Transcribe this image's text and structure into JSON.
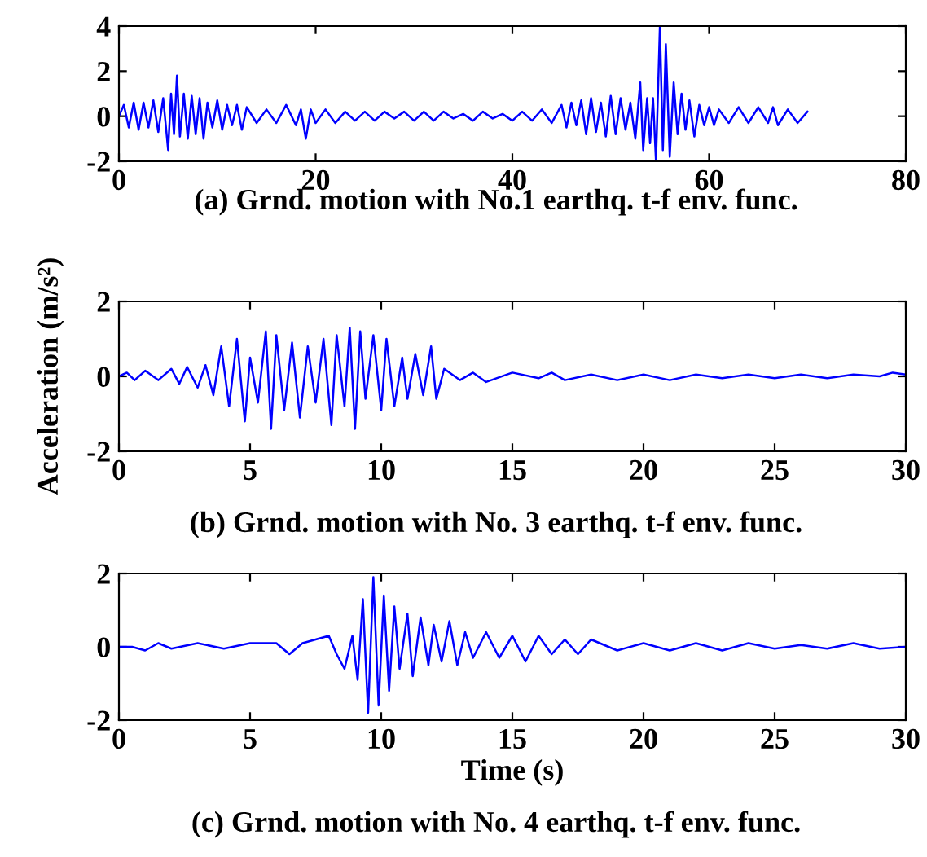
{
  "chart_data": [
    {
      "type": "line",
      "xlim": [
        0,
        80
      ],
      "ylim": [
        -2,
        4
      ],
      "xticks": [
        0,
        20,
        40,
        60,
        80
      ],
      "yticks": [
        -2,
        0,
        2,
        4
      ],
      "grid": false,
      "annotations": [
        "(a) Grnd. motion with No.1 earthq. t-f env. func."
      ],
      "series": [
        {
          "color": "#0000ff",
          "x": [
            0,
            0.5,
            1,
            1.5,
            2,
            2.5,
            3,
            3.5,
            4,
            4.5,
            5,
            5.3,
            5.6,
            5.9,
            6.2,
            6.6,
            7,
            7.4,
            7.8,
            8.2,
            8.6,
            9,
            9.5,
            10,
            10.5,
            11,
            11.5,
            12,
            12.5,
            13,
            14,
            15,
            16,
            17,
            18,
            18.5,
            19,
            19.5,
            20,
            21,
            22,
            23,
            24,
            25,
            26,
            27,
            28,
            29,
            30,
            31,
            32,
            33,
            34,
            35,
            36,
            37,
            38,
            39,
            40,
            41,
            42,
            43,
            44,
            45,
            45.5,
            46,
            46.5,
            47,
            47.5,
            48,
            48.5,
            49,
            49.5,
            50,
            50.5,
            51,
            51.5,
            52,
            52.5,
            53,
            53.3,
            53.7,
            54,
            54.3,
            54.6,
            55,
            55.3,
            55.6,
            56,
            56.4,
            56.8,
            57.2,
            57.6,
            58,
            58.5,
            59,
            59.5,
            60,
            60.5,
            61,
            62,
            63,
            64,
            65,
            66,
            66.5,
            67,
            68,
            69,
            70
          ],
          "values": [
            0,
            0.5,
            -0.5,
            0.6,
            -0.6,
            0.6,
            -0.5,
            0.7,
            -0.7,
            0.8,
            -1.5,
            1.0,
            -0.8,
            1.8,
            -0.9,
            1.0,
            -1.0,
            0.9,
            -0.8,
            0.8,
            -1.0,
            0.6,
            -0.5,
            0.7,
            -0.6,
            0.5,
            -0.4,
            0.5,
            -0.6,
            0.4,
            -0.3,
            0.3,
            -0.3,
            0.5,
            -0.4,
            0.3,
            -1.0,
            0.3,
            -0.3,
            0.3,
            -0.3,
            0.2,
            -0.2,
            0.2,
            -0.2,
            0.2,
            -0.1,
            0.2,
            -0.2,
            0.2,
            -0.2,
            0.2,
            -0.1,
            0.1,
            -0.2,
            0.2,
            -0.1,
            0.1,
            -0.2,
            0.2,
            -0.2,
            0.3,
            -0.3,
            0.5,
            -0.5,
            0.6,
            -0.4,
            0.7,
            -0.8,
            0.8,
            -0.7,
            0.6,
            -0.9,
            0.9,
            -0.8,
            0.8,
            -0.6,
            0.6,
            -1.0,
            1.5,
            -1.5,
            0.8,
            -1.2,
            0.8,
            -2.0,
            4.0,
            -1.5,
            3.2,
            -1.8,
            1.5,
            -0.8,
            1.0,
            -0.6,
            0.7,
            -0.9,
            0.5,
            -0.4,
            0.4,
            -0.4,
            0.3,
            -0.3,
            0.4,
            -0.3,
            0.4,
            -0.3,
            0.4,
            -0.4,
            0.3,
            -0.3,
            0.2
          ]
        }
      ]
    },
    {
      "type": "line",
      "xlim": [
        0,
        30
      ],
      "ylim": [
        -2,
        2
      ],
      "xticks": [
        0,
        5,
        10,
        15,
        20,
        25,
        30
      ],
      "yticks": [
        -2,
        0,
        2
      ],
      "grid": false,
      "ylabel": "Acceleration (m/s²)",
      "annotations": [
        "(b) Grnd. motion with No. 3 earthq. t-f env. func."
      ],
      "series": [
        {
          "color": "#0000ff",
          "x": [
            0,
            0.3,
            0.6,
            1,
            1.5,
            2,
            2.3,
            2.6,
            3,
            3.3,
            3.6,
            3.9,
            4.2,
            4.5,
            4.8,
            5,
            5.3,
            5.6,
            5.8,
            6,
            6.3,
            6.6,
            6.9,
            7.2,
            7.5,
            7.8,
            8.1,
            8.3,
            8.6,
            8.8,
            9,
            9.2,
            9.4,
            9.7,
            10,
            10.2,
            10.5,
            10.8,
            11,
            11.3,
            11.6,
            11.9,
            12.1,
            12.4,
            13,
            13.5,
            14,
            15,
            16,
            16.5,
            17,
            18,
            19,
            20,
            21,
            22,
            23,
            24,
            25,
            26,
            27,
            28,
            29,
            29.5,
            30
          ],
          "values": [
            0,
            0.1,
            -0.1,
            0.15,
            -0.1,
            0.2,
            -0.2,
            0.25,
            -0.3,
            0.3,
            -0.5,
            0.8,
            -0.8,
            1.0,
            -1.2,
            0.5,
            -0.7,
            1.2,
            -1.4,
            1.1,
            -0.9,
            0.9,
            -1.1,
            0.8,
            -0.7,
            1.0,
            -1.3,
            1.1,
            -0.8,
            1.3,
            -1.4,
            1.2,
            -0.6,
            1.1,
            -0.9,
            1.0,
            -0.8,
            0.5,
            -0.6,
            0.6,
            -0.5,
            0.8,
            -0.6,
            0.2,
            -0.1,
            0.1,
            -0.15,
            0.1,
            -0.05,
            0.1,
            -0.1,
            0.05,
            -0.1,
            0.05,
            -0.1,
            0.05,
            -0.05,
            0.05,
            -0.05,
            0.05,
            -0.05,
            0.05,
            0,
            0.1,
            0.05
          ]
        }
      ]
    },
    {
      "type": "line",
      "xlim": [
        0,
        30
      ],
      "ylim": [
        -2,
        2
      ],
      "xticks": [
        0,
        5,
        10,
        15,
        20,
        25,
        30
      ],
      "yticks": [
        -2,
        0,
        2
      ],
      "grid": false,
      "xlabel": "Time (s)",
      "annotations": [
        "(c) Grnd. motion with No. 4 earthq. t-f env. func."
      ],
      "series": [
        {
          "color": "#0000ff",
          "x": [
            0,
            0.5,
            1,
            1.5,
            2,
            3,
            4,
            5,
            6,
            6.5,
            7,
            7.5,
            8,
            8.3,
            8.6,
            8.9,
            9.1,
            9.3,
            9.5,
            9.7,
            9.9,
            10.1,
            10.3,
            10.5,
            10.7,
            11,
            11.2,
            11.5,
            11.8,
            12,
            12.3,
            12.6,
            12.9,
            13.2,
            13.5,
            14,
            14.5,
            15,
            15.5,
            16,
            16.5,
            17,
            17.5,
            18,
            19,
            20,
            21,
            22,
            23,
            24,
            25,
            26,
            27,
            28,
            29,
            30
          ],
          "values": [
            0,
            0,
            -0.1,
            0.1,
            -0.05,
            0.1,
            -0.05,
            0.1,
            0.1,
            -0.2,
            0.1,
            0.2,
            0.3,
            -0.2,
            -0.6,
            0.3,
            -0.9,
            1.3,
            -1.8,
            1.9,
            -1.6,
            1.4,
            -1.2,
            1.1,
            -0.6,
            0.9,
            -0.8,
            0.8,
            -0.5,
            0.6,
            -0.4,
            0.7,
            -0.5,
            0.4,
            -0.3,
            0.4,
            -0.3,
            0.3,
            -0.4,
            0.3,
            -0.2,
            0.2,
            -0.2,
            0.2,
            -0.1,
            0.1,
            -0.1,
            0.1,
            -0.1,
            0.1,
            -0.05,
            0.05,
            -0.05,
            0.1,
            -0.05,
            0
          ]
        }
      ]
    }
  ]
}
